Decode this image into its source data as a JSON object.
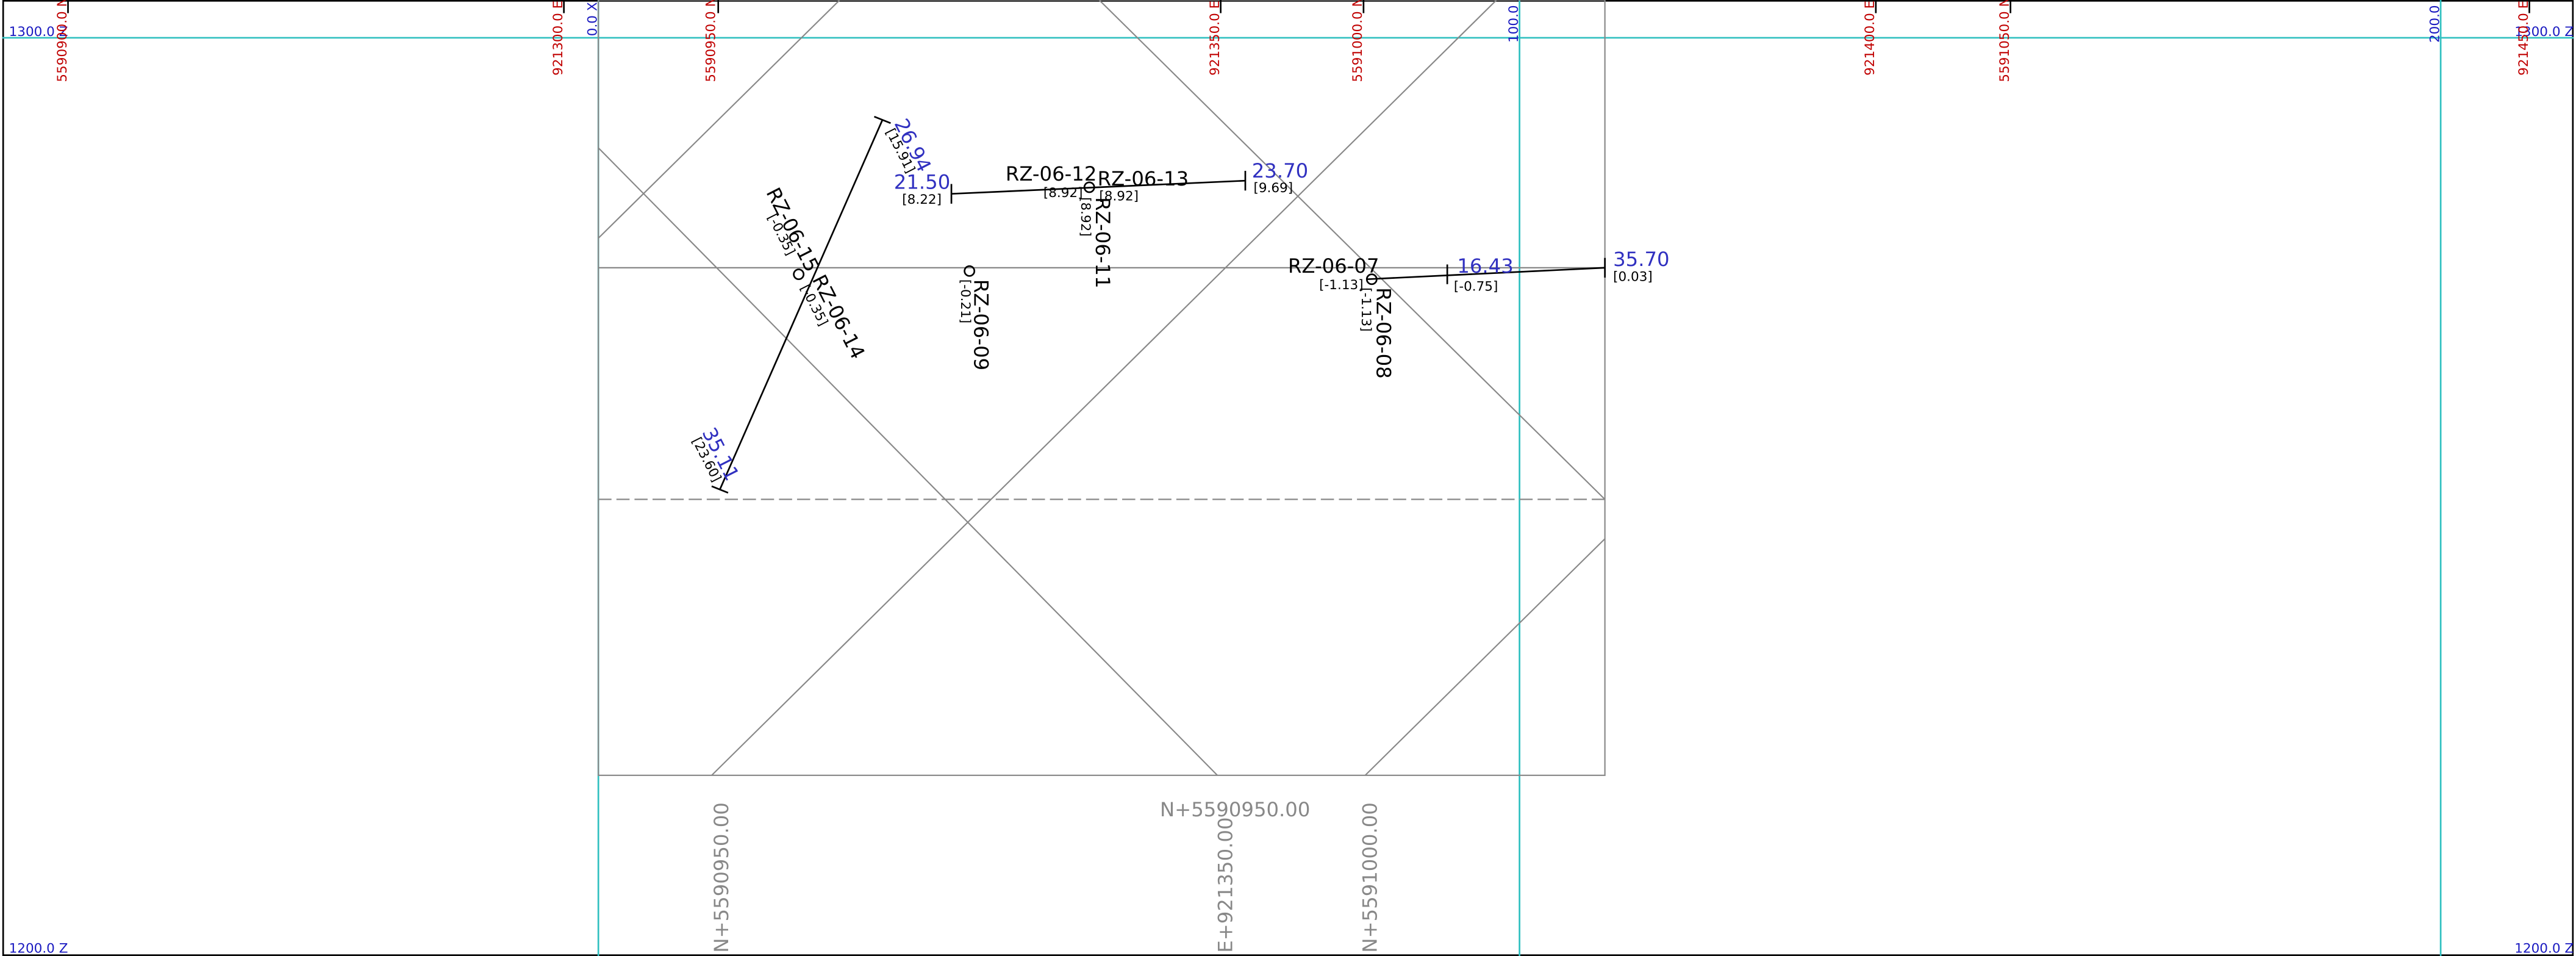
{
  "grid_labels": {
    "north": [
      "5590900.0 N",
      "5590950.0 N",
      "5591000.0 N",
      "5591050.0 N"
    ],
    "east": [
      "921300.0 E",
      "921350.0 E",
      "921400.0 E",
      "921450.0 E"
    ],
    "x": [
      "0.0 X",
      "100.0 X",
      "200.0 X"
    ],
    "z_top": "1300.0 Z",
    "z_bottom": "1200.0 Z"
  },
  "boreholes": [
    {
      "name": "RZ-06-12",
      "bracket": "[8.92]"
    },
    {
      "name": "RZ-06-13",
      "bracket": "[8.92]",
      "end_value": "23.70",
      "end_bracket": "[9.69]"
    },
    {
      "name": "RZ-06-11",
      "bracket": "[8.92]"
    },
    {
      "name": "RZ-06-09",
      "bracket": "[-0.21]"
    },
    {
      "name": "RZ-06-07",
      "bracket": "[-1.13]",
      "end_value": "35.70",
      "end_bracket": "[0.03]"
    },
    {
      "name": "RZ-06-08",
      "bracket": "[-1.13]"
    },
    {
      "name": "RZ-06-15",
      "bracket": "[-0.35]",
      "end_value": "26.94",
      "end_bracket": "[15.91]"
    },
    {
      "name": "RZ-06-14",
      "bracket": "[-0.35]",
      "end_value": "35.11",
      "end_bracket": "[23.60]"
    }
  ],
  "intercepts": [
    {
      "value": "21.50",
      "bracket": "[8.22]"
    },
    {
      "value": "16.43",
      "bracket": "[-0.75]"
    }
  ],
  "section_labels": {
    "horizontal": "N+5590950.00",
    "vertical": [
      "N+5590950.00",
      "E+921350.00",
      "N+5591000.00"
    ]
  }
}
